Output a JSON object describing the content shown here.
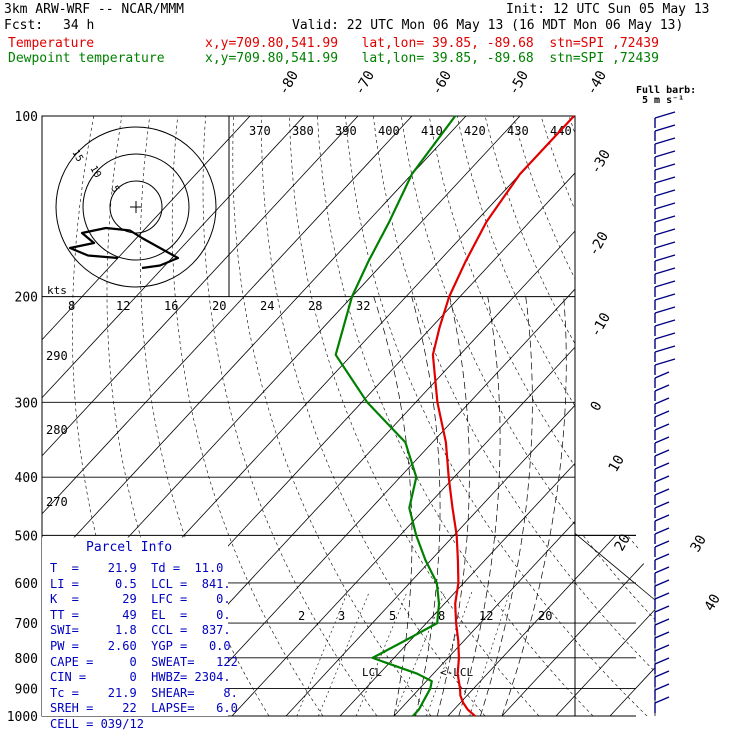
{
  "header": {
    "model": "3km ARW-WRF -- NCAR/MMM",
    "init": "Init: 12 UTC Sun 05 May 13",
    "fcst_label": "Fcst:",
    "fcst_value": "34 h",
    "valid": "Valid: 22 UTC Mon 06 May 13 (16 MDT Mon 06 May 13)",
    "temp_label": "Temperature",
    "temp_info": "x,y=709.80,541.99   lat,lon= 39.85, -89.68  stn=SPI ,72439",
    "dew_label": "Dewpoint temperature",
    "dew_info": "x,y=709.80,541.99   lat,lon= 39.85, -89.68  stn=SPI ,72439"
  },
  "colors": {
    "temperature": "#e00000",
    "dewpoint": "#008000",
    "info": "#0000c0",
    "barb": "#000080"
  },
  "chart_data": {
    "type": "line",
    "pressure_levels": [
      100,
      200,
      300,
      400,
      500,
      600,
      700,
      800,
      900,
      1000
    ],
    "temp_axis_labels": [
      "-80",
      "-70",
      "-60",
      "-50",
      "-40",
      "-30",
      "-20",
      "-10",
      "0",
      "10",
      "20",
      "30",
      "40"
    ],
    "theta_labels": [
      "370",
      "380",
      "390",
      "400",
      "410",
      "420",
      "430",
      "440"
    ],
    "theta_left_labels": [
      "290",
      "280",
      "270"
    ],
    "mixing_ratio_labels": [
      "2",
      "3",
      "5",
      "8",
      "12",
      "20"
    ],
    "hodograph": {
      "kts_label": "kts",
      "speed_labels": [
        "8",
        "12",
        "16",
        "20",
        "24",
        "28",
        "32"
      ],
      "ring_labels": [
        "15",
        "10",
        "5"
      ]
    },
    "barb_legend": [
      "Full barb:",
      "5 m s⁻¹"
    ],
    "lcl_label": "LCL",
    "lcl_arrow_label": "<-LCL",
    "series": [
      {
        "name": "Temperature",
        "points": [
          [
            1000,
            25.0
          ],
          [
            975,
            22.5
          ],
          [
            950,
            20.5
          ],
          [
            925,
            18.8
          ],
          [
            900,
            17.5
          ],
          [
            875,
            16.0
          ],
          [
            850,
            14.5
          ],
          [
            800,
            12.0
          ],
          [
            750,
            9.0
          ],
          [
            700,
            5.5
          ],
          [
            650,
            2.0
          ],
          [
            600,
            -1.0
          ],
          [
            550,
            -5.0
          ],
          [
            500,
            -9.5
          ],
          [
            450,
            -15.0
          ],
          [
            400,
            -21.0
          ],
          [
            350,
            -27.5
          ],
          [
            300,
            -36.0
          ],
          [
            250,
            -45.0
          ],
          [
            225,
            -48.5
          ],
          [
            200,
            -52.0
          ],
          [
            175,
            -55.0
          ],
          [
            150,
            -58.0
          ],
          [
            125,
            -60.0
          ],
          [
            100,
            -60.0
          ]
        ]
      },
      {
        "name": "Dewpoint temperature",
        "points": [
          [
            1000,
            13.5
          ],
          [
            975,
            13.5
          ],
          [
            950,
            13.0
          ],
          [
            925,
            12.5
          ],
          [
            900,
            12.0
          ],
          [
            875,
            11.0
          ],
          [
            850,
            7.0
          ],
          [
            800,
            -4.0
          ],
          [
            750,
            -1.0
          ],
          [
            700,
            2.0
          ],
          [
            650,
            -1.0
          ],
          [
            600,
            -5.0
          ],
          [
            550,
            -11.0
          ],
          [
            500,
            -17.0
          ],
          [
            450,
            -23.0
          ],
          [
            400,
            -27.0
          ],
          [
            350,
            -35.0
          ],
          [
            300,
            -49.0
          ],
          [
            250,
            -63.0
          ],
          [
            200,
            -70.0
          ],
          [
            175,
            -73.0
          ],
          [
            150,
            -76.0
          ],
          [
            125,
            -80.0
          ],
          [
            100,
            -82.0
          ]
        ]
      }
    ],
    "hodograph_trace": [
      [
        0,
        0
      ],
      [
        1.5,
        0.5
      ],
      [
        3,
        2
      ],
      [
        1.5,
        4
      ],
      [
        0,
        6
      ],
      [
        -1,
        7.5
      ],
      [
        -3,
        8
      ],
      [
        -5,
        7
      ],
      [
        -4,
        5
      ],
      [
        -6,
        4
      ],
      [
        -4.5,
        2.5
      ],
      [
        -2,
        2
      ]
    ]
  },
  "parcel_info": {
    "title": "Parcel Info",
    "lines": [
      "T  =    21.9  Td =  11.0",
      "LI =     0.5  LCL =  841.",
      "K  =      29  LFC =    0.",
      "TT =      49  EL  =    0.",
      "SWI=     1.8  CCL =  837.",
      "PW =    2.60  YGP =   0.0",
      "CAPE =     0  SWEAT=   122",
      "CIN =      0  HWBZ= 2304.",
      "Tc =    21.9  SHEAR=    8.",
      "SREH =    22  LAPSE=   6.0",
      "CELL = 039/12"
    ]
  }
}
